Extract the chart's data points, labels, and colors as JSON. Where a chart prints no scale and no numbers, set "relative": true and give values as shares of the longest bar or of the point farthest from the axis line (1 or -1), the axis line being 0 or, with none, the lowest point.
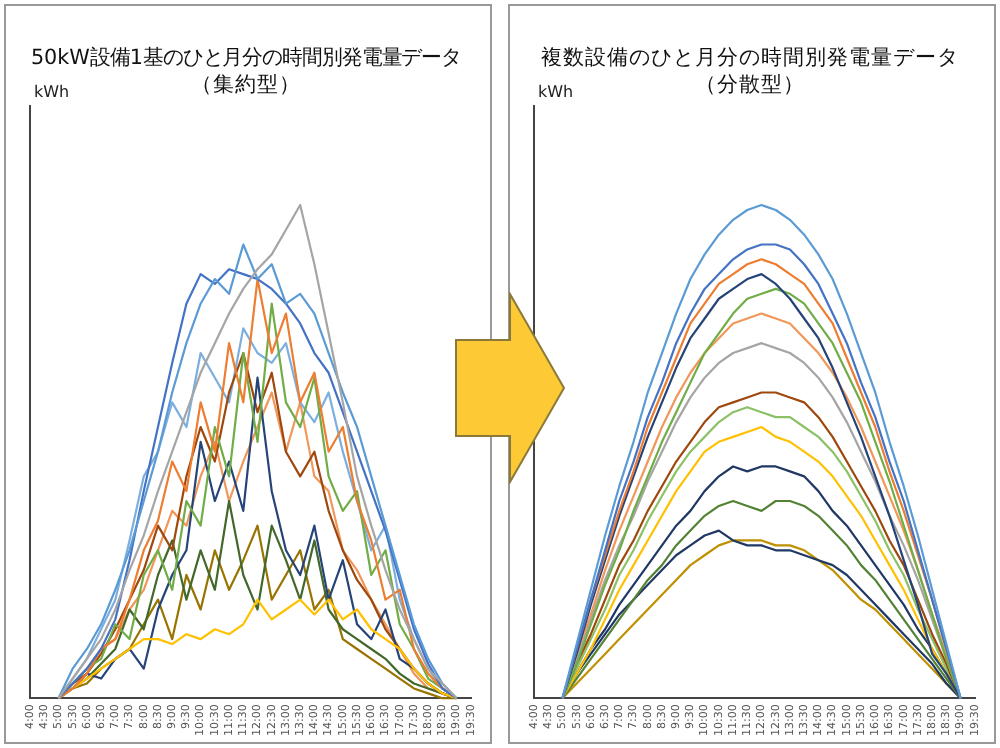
{
  "chart_data": [
    {
      "type": "line",
      "title": "50kW設備1基のひと月分の時間別発電量データ",
      "subtitle": "（集約型）",
      "ylabel": "kWh",
      "relative": true,
      "marker": "none",
      "categories": [
        "4:00",
        "4:30",
        "5:00",
        "5:30",
        "6:00",
        "6:30",
        "7:00",
        "7:30",
        "8:00",
        "8:30",
        "9:00",
        "9:30",
        "10:00",
        "10:30",
        "11:00",
        "11:30",
        "12:00",
        "12:30",
        "13:00",
        "13:30",
        "14:00",
        "14:30",
        "15:00",
        "15:30",
        "16:00",
        "16:30",
        "17:00",
        "17:30",
        "18:00",
        "18:30",
        "19:00",
        "19:30"
      ],
      "series": [
        {
          "color": "#a5a5a5",
          "values": [
            null,
            null,
            0,
            0.04,
            0.08,
            0.12,
            0.18,
            0.26,
            0.33,
            0.42,
            0.5,
            0.58,
            0.66,
            0.72,
            0.78,
            0.83,
            0.87,
            0.9,
            0.95,
            1,
            0.88,
            0.74,
            0.6,
            0.45,
            0.35,
            0.26,
            0.18,
            0.12,
            0.06,
            0.03,
            0,
            null
          ]
        },
        {
          "color": "#5b9bd5",
          "values": [
            null,
            null,
            0,
            0.06,
            0.1,
            0.15,
            0.22,
            0.3,
            0.4,
            0.5,
            0.62,
            0.72,
            0.8,
            0.85,
            0.82,
            0.92,
            0.85,
            0.88,
            0.8,
            0.82,
            0.78,
            0.7,
            0.62,
            0.55,
            0.45,
            0.35,
            0.25,
            0.15,
            0.08,
            0.03,
            0,
            null
          ]
        },
        {
          "color": "#4472c4",
          "values": [
            null,
            null,
            0,
            0.03,
            0.06,
            0.1,
            0.16,
            0.28,
            0.42,
            0.55,
            0.68,
            0.8,
            0.86,
            0.84,
            0.87,
            0.86,
            0.85,
            0.83,
            0.8,
            0.76,
            0.7,
            0.66,
            0.58,
            0.5,
            0.42,
            0.34,
            0.24,
            0.14,
            0.07,
            0.02,
            0,
            null
          ]
        },
        {
          "color": "#ed7d31",
          "values": [
            null,
            null,
            0,
            0.02,
            0.05,
            0.1,
            0.12,
            0.2,
            0.3,
            0.36,
            0.48,
            0.42,
            0.6,
            0.5,
            0.72,
            0.6,
            0.85,
            0.7,
            0.78,
            0.6,
            0.66,
            0.5,
            0.55,
            0.4,
            0.32,
            0.2,
            0.22,
            0.1,
            0.05,
            0.02,
            0,
            null
          ]
        },
        {
          "color": "#70ad47",
          "values": [
            null,
            null,
            0,
            0.03,
            0.06,
            0.08,
            0.15,
            0.12,
            0.25,
            0.3,
            0.22,
            0.4,
            0.35,
            0.55,
            0.45,
            0.7,
            0.52,
            0.8,
            0.6,
            0.55,
            0.65,
            0.45,
            0.38,
            0.42,
            0.25,
            0.3,
            0.15,
            0.1,
            0.04,
            0.02,
            0,
            null
          ]
        },
        {
          "color": "#ffc000",
          "values": [
            null,
            null,
            0,
            0.02,
            0.04,
            0.06,
            0.08,
            0.1,
            0.12,
            0.12,
            0.11,
            0.13,
            0.12,
            0.14,
            0.13,
            0.15,
            0.2,
            0.16,
            0.18,
            0.2,
            0.17,
            0.2,
            0.16,
            0.18,
            0.14,
            0.12,
            0.1,
            0.06,
            0.03,
            0.01,
            0,
            null
          ]
        },
        {
          "color": "#264478",
          "values": [
            null,
            null,
            0,
            0.02,
            0.05,
            0.04,
            0.08,
            0.1,
            0.06,
            0.18,
            0.25,
            0.3,
            0.52,
            0.4,
            0.48,
            0.38,
            0.65,
            0.42,
            0.3,
            0.25,
            0.35,
            0.2,
            0.28,
            0.15,
            0.12,
            0.18,
            0.08,
            0.06,
            0.03,
            0.01,
            0,
            null
          ]
        },
        {
          "color": "#9e480e",
          "values": [
            null,
            null,
            0,
            0.03,
            0.05,
            0.09,
            0.14,
            0.2,
            0.26,
            0.35,
            0.3,
            0.45,
            0.55,
            0.48,
            0.62,
            0.7,
            0.58,
            0.66,
            0.5,
            0.45,
            0.5,
            0.38,
            0.3,
            0.24,
            0.2,
            0.14,
            0.1,
            0.06,
            0.03,
            0.01,
            0,
            null
          ]
        },
        {
          "color": "#43682b",
          "values": [
            null,
            null,
            0,
            0.02,
            0.04,
            0.07,
            0.1,
            0.18,
            0.14,
            0.25,
            0.32,
            0.2,
            0.3,
            0.22,
            0.4,
            0.25,
            0.18,
            0.35,
            0.28,
            0.2,
            0.32,
            0.18,
            0.14,
            0.12,
            0.1,
            0.08,
            0.05,
            0.03,
            0.02,
            0.01,
            0,
            null
          ]
        },
        {
          "color": "#7cafdd",
          "values": [
            null,
            null,
            0,
            0.04,
            0.08,
            0.14,
            0.2,
            0.32,
            0.45,
            0.5,
            0.6,
            0.55,
            0.7,
            0.65,
            0.6,
            0.75,
            0.7,
            0.68,
            0.72,
            0.6,
            0.56,
            0.62,
            0.5,
            0.4,
            0.3,
            0.35,
            0.2,
            0.12,
            0.06,
            0.02,
            0,
            null
          ]
        },
        {
          "color": "#f1975a",
          "values": [
            null,
            null,
            0,
            0.03,
            0.06,
            0.1,
            0.12,
            0.18,
            0.22,
            0.3,
            0.38,
            0.35,
            0.45,
            0.52,
            0.4,
            0.48,
            0.55,
            0.62,
            0.5,
            0.6,
            0.45,
            0.42,
            0.3,
            0.26,
            0.2,
            0.15,
            0.1,
            0.05,
            0.02,
            0.01,
            0,
            null
          ]
        },
        {
          "color": "#997300",
          "values": [
            null,
            null,
            0,
            0.02,
            0.03,
            0.06,
            0.08,
            0.1,
            0.15,
            0.2,
            0.12,
            0.25,
            0.18,
            0.3,
            0.22,
            0.28,
            0.35,
            0.2,
            0.25,
            0.3,
            0.18,
            0.22,
            0.12,
            0.1,
            0.08,
            0.06,
            0.04,
            0.02,
            0.01,
            0,
            0,
            null
          ]
        }
      ]
    },
    {
      "type": "line",
      "title": "複数設備のひと月分の時間別発電量データ",
      "subtitle": "（分散型）",
      "ylabel": "kWh",
      "relative": true,
      "marker": "none",
      "categories": [
        "4:00",
        "4:30",
        "5:00",
        "5:30",
        "6:00",
        "6:30",
        "7:00",
        "7:30",
        "8:00",
        "8:30",
        "9:00",
        "9:30",
        "10:00",
        "10:30",
        "11:00",
        "11:30",
        "12:00",
        "12:30",
        "13:00",
        "13:30",
        "14:00",
        "14:30",
        "15:00",
        "15:30",
        "16:00",
        "16:30",
        "17:00",
        "17:30",
        "18:00",
        "18:30",
        "19:00",
        "19:30"
      ],
      "series": [
        {
          "color": "#5b9bd5",
          "values": [
            null,
            null,
            0,
            0.11,
            0.22,
            0.33,
            0.43,
            0.52,
            0.62,
            0.7,
            0.78,
            0.85,
            0.9,
            0.94,
            0.97,
            0.99,
            1,
            0.99,
            0.97,
            0.94,
            0.9,
            0.85,
            0.78,
            0.7,
            0.62,
            0.52,
            0.43,
            0.33,
            0.22,
            0.11,
            0,
            null
          ]
        },
        {
          "color": "#4472c4",
          "values": [
            null,
            null,
            0,
            0.1,
            0.2,
            0.3,
            0.4,
            0.48,
            0.57,
            0.64,
            0.72,
            0.78,
            0.83,
            0.86,
            0.89,
            0.91,
            0.92,
            0.92,
            0.91,
            0.88,
            0.84,
            0.78,
            0.72,
            0.64,
            0.57,
            0.48,
            0.4,
            0.3,
            0.2,
            0.1,
            0,
            null
          ]
        },
        {
          "color": "#ed7d31",
          "values": [
            null,
            null,
            0,
            0.1,
            0.2,
            0.29,
            0.38,
            0.46,
            0.55,
            0.62,
            0.69,
            0.76,
            0.8,
            0.84,
            0.86,
            0.88,
            0.89,
            0.88,
            0.86,
            0.84,
            0.8,
            0.76,
            0.69,
            0.62,
            0.55,
            0.46,
            0.38,
            0.29,
            0.2,
            0.1,
            0,
            null
          ]
        },
        {
          "color": "#264478",
          "values": [
            null,
            null,
            0,
            0.09,
            0.19,
            0.28,
            0.37,
            0.45,
            0.53,
            0.6,
            0.67,
            0.73,
            0.77,
            0.81,
            0.83,
            0.85,
            0.86,
            0.84,
            0.81,
            0.77,
            0.73,
            0.67,
            0.6,
            0.53,
            0.45,
            0.37,
            0.28,
            0.19,
            0.09,
            0.05,
            0,
            null
          ]
        },
        {
          "color": "#70ad47",
          "values": [
            null,
            null,
            0,
            0.07,
            0.15,
            0.23,
            0.3,
            0.38,
            0.45,
            0.52,
            0.58,
            0.64,
            0.7,
            0.74,
            0.78,
            0.81,
            0.82,
            0.83,
            0.82,
            0.8,
            0.76,
            0.72,
            0.66,
            0.6,
            0.52,
            0.44,
            0.35,
            0.26,
            0.17,
            0.08,
            0,
            null
          ]
        },
        {
          "color": "#f1975a",
          "values": [
            null,
            null,
            0,
            0.09,
            0.17,
            0.26,
            0.34,
            0.41,
            0.48,
            0.55,
            0.61,
            0.66,
            0.7,
            0.73,
            0.76,
            0.77,
            0.78,
            0.77,
            0.76,
            0.73,
            0.7,
            0.66,
            0.61,
            0.55,
            0.48,
            0.41,
            0.34,
            0.26,
            0.17,
            0.09,
            0,
            null
          ]
        },
        {
          "color": "#a5a5a5",
          "values": [
            null,
            null,
            0,
            0.08,
            0.16,
            0.24,
            0.31,
            0.37,
            0.44,
            0.5,
            0.56,
            0.61,
            0.65,
            0.68,
            0.7,
            0.71,
            0.72,
            0.71,
            0.7,
            0.68,
            0.65,
            0.61,
            0.56,
            0.5,
            0.44,
            0.37,
            0.31,
            0.24,
            0.16,
            0.08,
            0,
            null
          ]
        },
        {
          "color": "#9e480e",
          "values": [
            null,
            null,
            0,
            0.07,
            0.13,
            0.2,
            0.27,
            0.32,
            0.38,
            0.43,
            0.48,
            0.52,
            0.56,
            0.59,
            0.6,
            0.61,
            0.62,
            0.62,
            0.61,
            0.6,
            0.57,
            0.53,
            0.48,
            0.43,
            0.38,
            0.32,
            0.27,
            0.2,
            0.13,
            0.07,
            0,
            null
          ]
        },
        {
          "color": "#8cc168",
          "values": [
            null,
            null,
            0,
            0.06,
            0.12,
            0.18,
            0.25,
            0.3,
            0.36,
            0.41,
            0.46,
            0.5,
            0.53,
            0.56,
            0.58,
            0.59,
            0.58,
            0.57,
            0.57,
            0.55,
            0.53,
            0.5,
            0.46,
            0.41,
            0.36,
            0.3,
            0.25,
            0.18,
            0.12,
            0.06,
            0,
            null
          ]
        },
        {
          "color": "#ffc000",
          "values": [
            null,
            null,
            0,
            0.05,
            0.1,
            0.16,
            0.22,
            0.27,
            0.32,
            0.37,
            0.42,
            0.46,
            0.5,
            0.52,
            0.53,
            0.54,
            0.55,
            0.53,
            0.52,
            0.5,
            0.48,
            0.45,
            0.41,
            0.37,
            0.32,
            0.27,
            0.22,
            0.16,
            0.1,
            0.05,
            0,
            null
          ]
        },
        {
          "color": "#1f3864",
          "values": [
            null,
            null,
            0,
            0.05,
            0.1,
            0.14,
            0.19,
            0.23,
            0.27,
            0.31,
            0.35,
            0.38,
            0.42,
            0.45,
            0.47,
            0.46,
            0.47,
            0.47,
            0.46,
            0.45,
            0.42,
            0.38,
            0.35,
            0.31,
            0.27,
            0.23,
            0.19,
            0.14,
            0.1,
            0.05,
            0,
            null
          ]
        },
        {
          "color": "#548235",
          "values": [
            null,
            null,
            0,
            0.04,
            0.08,
            0.12,
            0.16,
            0.2,
            0.24,
            0.27,
            0.31,
            0.34,
            0.37,
            0.39,
            0.4,
            0.39,
            0.38,
            0.4,
            0.4,
            0.39,
            0.37,
            0.34,
            0.31,
            0.27,
            0.24,
            0.2,
            0.16,
            0.12,
            0.08,
            0.04,
            0,
            null
          ]
        },
        {
          "color": "#203864",
          "values": [
            null,
            null,
            0,
            0.05,
            0.09,
            0.13,
            0.17,
            0.2,
            0.23,
            0.26,
            0.29,
            0.31,
            0.33,
            0.34,
            0.32,
            0.31,
            0.31,
            0.3,
            0.3,
            0.29,
            0.28,
            0.27,
            0.25,
            0.22,
            0.19,
            0.16,
            0.13,
            0.1,
            0.07,
            0.03,
            0,
            null
          ]
        },
        {
          "color": "#bf9000",
          "values": [
            null,
            null,
            0,
            0.03,
            0.06,
            0.09,
            0.12,
            0.15,
            0.18,
            0.21,
            0.24,
            0.27,
            0.29,
            0.31,
            0.32,
            0.32,
            0.32,
            0.31,
            0.31,
            0.3,
            0.28,
            0.26,
            0.23,
            0.2,
            0.18,
            0.15,
            0.12,
            0.09,
            0.06,
            0.03,
            0,
            null
          ]
        }
      ]
    }
  ]
}
